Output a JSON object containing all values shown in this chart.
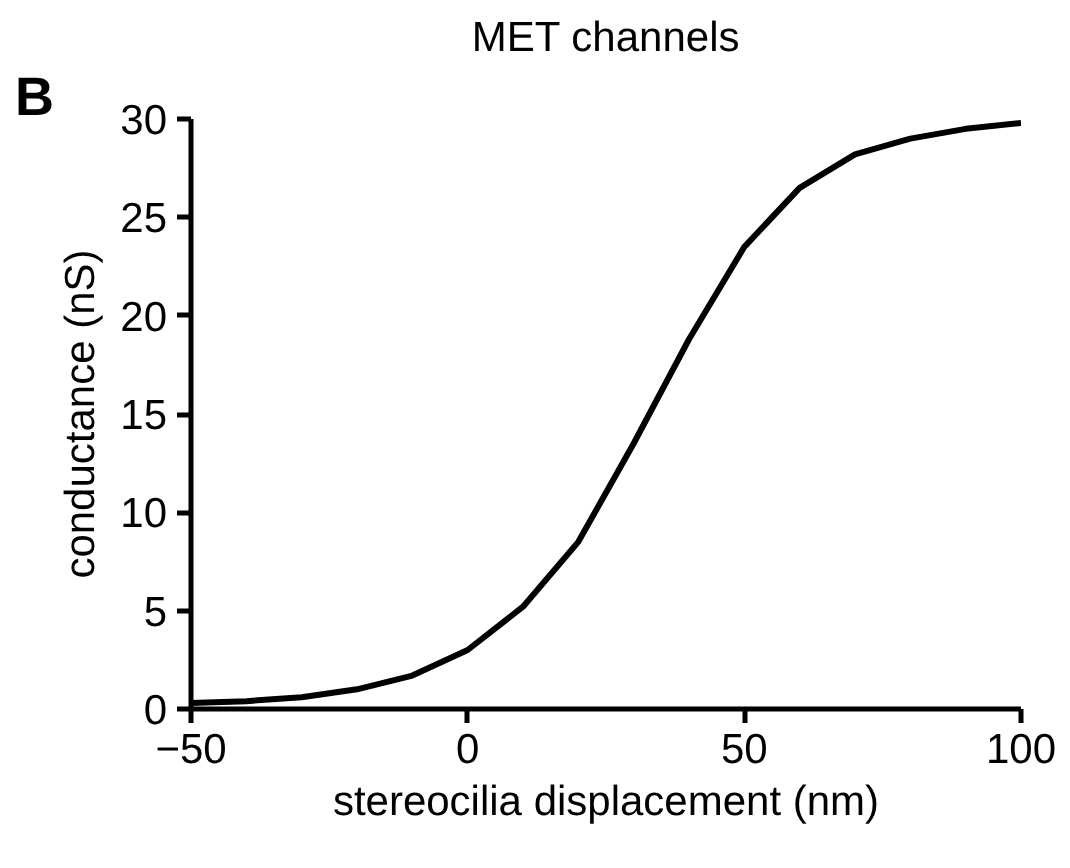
{
  "chart_data": {
    "type": "line",
    "title": "MET channels",
    "xlabel": "stereocilia displacement (nm)",
    "ylabel": "conductance (nS)",
    "annotations": [
      "B"
    ],
    "x": [
      -50,
      -40,
      -30,
      -20,
      -10,
      0,
      10,
      20,
      30,
      40,
      50,
      60,
      70,
      80,
      90,
      100
    ],
    "series": [
      {
        "color": "#000000",
        "values": [
          0.3,
          0.4,
          0.6,
          1.0,
          1.7,
          3.0,
          5.2,
          8.5,
          13.5,
          18.8,
          23.5,
          26.5,
          28.2,
          29.0,
          29.5,
          29.8
        ]
      }
    ],
    "xlim": [
      -50,
      100
    ],
    "ylim": [
      0,
      30
    ],
    "xticks": [
      -50,
      0,
      50,
      100
    ],
    "yticks": [
      0,
      5,
      10,
      15,
      20,
      25,
      30
    ],
    "grid": false,
    "marker": "none",
    "line_style": "solid"
  }
}
